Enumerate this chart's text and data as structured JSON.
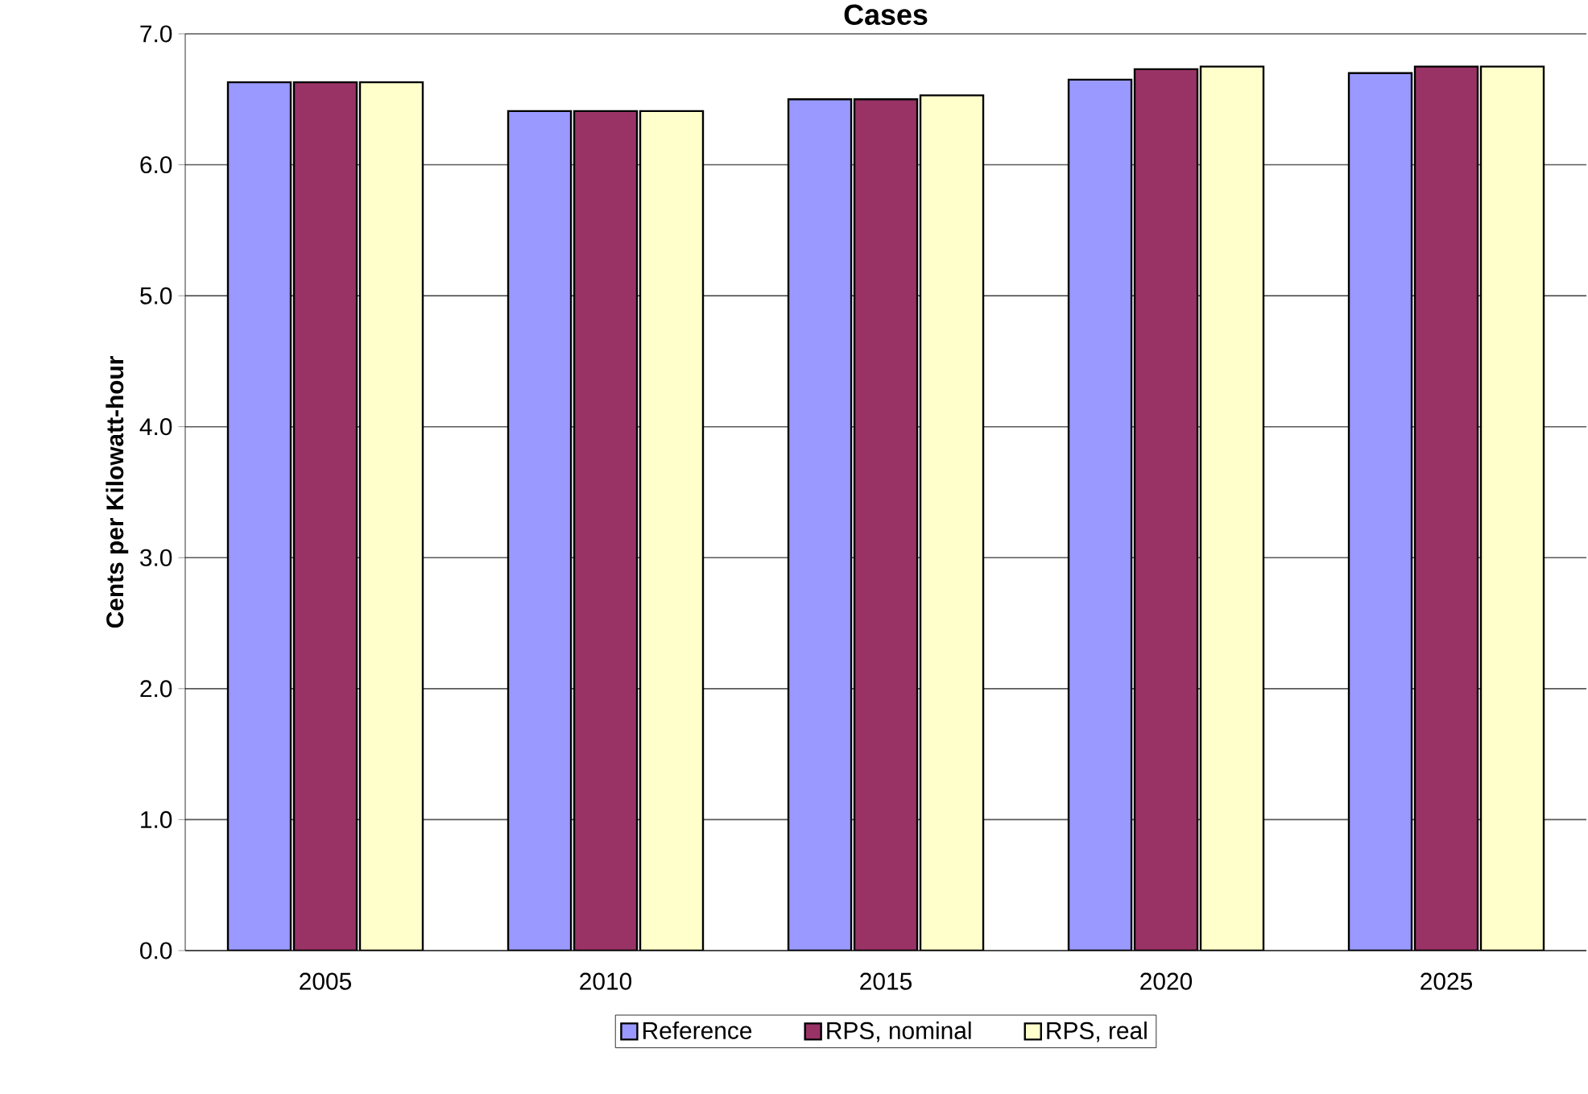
{
  "chart_data": {
    "type": "bar",
    "title": "Cases",
    "ylabel": "Cents per Kilowatt-hour",
    "categories": [
      "2005",
      "2010",
      "2015",
      "2020",
      "2025"
    ],
    "series": [
      {
        "name": "Reference",
        "color": "#9999ff",
        "values": [
          6.63,
          6.41,
          6.5,
          6.65,
          6.7
        ]
      },
      {
        "name": "RPS, nominal",
        "color": "#993366",
        "values": [
          6.63,
          6.41,
          6.5,
          6.73,
          6.75
        ]
      },
      {
        "name": "RPS, real",
        "color": "#ffffcc",
        "values": [
          6.63,
          6.41,
          6.53,
          6.75,
          6.75
        ]
      }
    ],
    "ylim": [
      0,
      7
    ],
    "yticks": [
      {
        "value": 0,
        "label": "0.0"
      },
      {
        "value": 1,
        "label": "1.0"
      },
      {
        "value": 2,
        "label": "2.0"
      },
      {
        "value": 3,
        "label": "3.0"
      },
      {
        "value": 4,
        "label": "4.0"
      },
      {
        "value": 5,
        "label": "5.0"
      },
      {
        "value": 6,
        "label": "6.0"
      },
      {
        "value": 7,
        "label": "7.0"
      }
    ],
    "grid": "y",
    "legend": "bottom"
  }
}
